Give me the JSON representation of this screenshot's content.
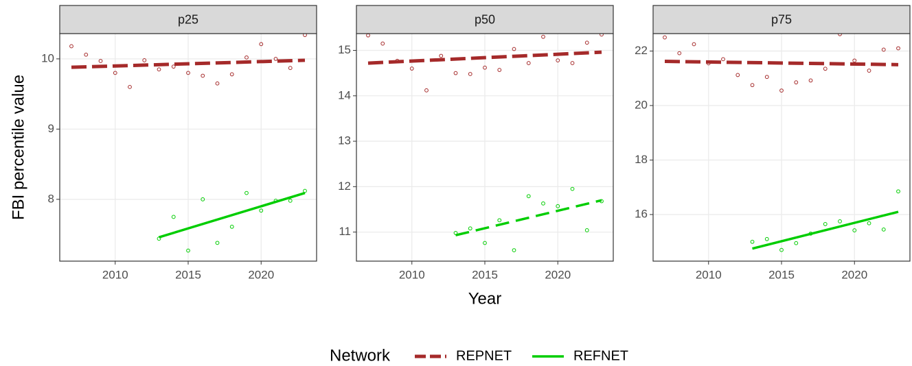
{
  "figure": {
    "y_label": "FBI percentile value",
    "x_label": "Year",
    "legend_title": "Network"
  },
  "chart_data": [
    {
      "type": "scatter",
      "title": "p25",
      "xlim": [
        2006.2,
        2023.8
      ],
      "xticks": [
        2010,
        2015,
        2020
      ],
      "ylim": [
        7.12,
        10.36
      ],
      "yticks": [
        8,
        9,
        10
      ],
      "grid": true,
      "series": [
        {
          "name": "REPNET",
          "color": "#a52a2a",
          "line_style": "dashed",
          "x": [
            2007,
            2008,
            2009,
            2010,
            2011,
            2012,
            2013,
            2014,
            2015,
            2016,
            2017,
            2018,
            2019,
            2020,
            2021,
            2022,
            2023
          ],
          "values": [
            10.18,
            10.06,
            9.97,
            9.8,
            9.6,
            9.98,
            9.85,
            9.89,
            9.8,
            9.76,
            9.65,
            9.78,
            10.02,
            10.21,
            10.0,
            9.87,
            10.34
          ],
          "trend_x": [
            2007,
            2023
          ],
          "trend": [
            9.88,
            9.98
          ]
        },
        {
          "name": "REFNET",
          "color": "#00cd00",
          "line_style": "solid",
          "x": [
            2013,
            2014,
            2015,
            2016,
            2017,
            2018,
            2019,
            2020,
            2021,
            2022,
            2023
          ],
          "values": [
            7.44,
            7.75,
            7.27,
            8.0,
            7.38,
            7.61,
            8.09,
            7.84,
            7.98,
            7.98,
            8.12
          ],
          "trend_x": [
            2013,
            2023
          ],
          "trend": [
            7.46,
            8.09
          ]
        }
      ]
    },
    {
      "type": "scatter",
      "title": "p50",
      "xlim": [
        2006.2,
        2023.8
      ],
      "xticks": [
        2010,
        2015,
        2020
      ],
      "ylim": [
        10.36,
        15.37
      ],
      "yticks": [
        11,
        12,
        13,
        14,
        15
      ],
      "grid": true,
      "series": [
        {
          "name": "REPNET",
          "color": "#a52a2a",
          "line_style": "dashed",
          "x": [
            2007,
            2008,
            2009,
            2010,
            2011,
            2012,
            2013,
            2014,
            2015,
            2016,
            2017,
            2018,
            2019,
            2020,
            2021,
            2022,
            2023
          ],
          "values": [
            15.33,
            15.15,
            14.77,
            14.6,
            14.12,
            14.88,
            14.5,
            14.48,
            14.62,
            14.57,
            15.03,
            14.72,
            15.3,
            14.78,
            14.72,
            15.17,
            15.35
          ],
          "trend_x": [
            2007,
            2023
          ],
          "trend": [
            14.72,
            14.96
          ]
        },
        {
          "name": "REFNET",
          "color": "#00cd00",
          "line_style": "dashed",
          "x": [
            2013,
            2014,
            2015,
            2016,
            2017,
            2018,
            2019,
            2020,
            2021,
            2022,
            2023
          ],
          "values": [
            10.98,
            11.08,
            10.76,
            11.26,
            10.6,
            11.79,
            11.63,
            11.57,
            11.95,
            11.04,
            11.68
          ],
          "trend_x": [
            2013,
            2023
          ],
          "trend": [
            10.93,
            11.7
          ]
        }
      ]
    },
    {
      "type": "scatter",
      "title": "p75",
      "xlim": [
        2006.2,
        2023.8
      ],
      "xticks": [
        2010,
        2015,
        2020
      ],
      "ylim": [
        14.29,
        22.64
      ],
      "yticks": [
        16,
        18,
        20,
        22
      ],
      "grid": true,
      "series": [
        {
          "name": "REPNET",
          "color": "#a52a2a",
          "line_style": "dashed",
          "x": [
            2007,
            2008,
            2009,
            2010,
            2011,
            2012,
            2013,
            2014,
            2015,
            2016,
            2017,
            2018,
            2019,
            2020,
            2021,
            2022,
            2023
          ],
          "values": [
            22.5,
            21.92,
            22.25,
            21.55,
            21.7,
            21.12,
            20.75,
            21.05,
            20.55,
            20.85,
            20.92,
            21.35,
            22.62,
            21.65,
            21.28,
            22.05,
            22.1
          ],
          "trend_x": [
            2007,
            2023
          ],
          "trend": [
            21.62,
            21.5
          ]
        },
        {
          "name": "REFNET",
          "color": "#00cd00",
          "line_style": "solid",
          "x": [
            2013,
            2014,
            2015,
            2016,
            2017,
            2018,
            2019,
            2020,
            2021,
            2022,
            2023
          ],
          "values": [
            15.0,
            15.1,
            14.7,
            14.95,
            15.3,
            15.65,
            15.75,
            15.42,
            15.68,
            15.45,
            16.85
          ],
          "trend_x": [
            2013,
            2023
          ],
          "trend": [
            14.75,
            16.1
          ]
        }
      ]
    }
  ]
}
